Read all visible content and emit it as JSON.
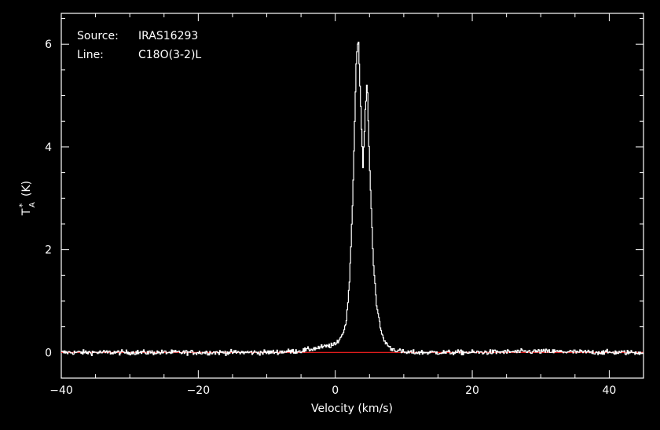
{
  "chart_data": {
    "type": "line",
    "info": {
      "source_label": "Source:",
      "source_value": "IRAS16293",
      "line_label": "Line:",
      "line_value": "C18O(3-2)L"
    },
    "xlabel": "Velocity (km/s)",
    "ylabel_main": "T",
    "ylabel_sup": "*",
    "ylabel_sub": "A",
    "ylabel_unit": "(K)",
    "xlim": [
      -40,
      45
    ],
    "ylim": [
      -0.5,
      6.6
    ],
    "x_ticks": [
      -40,
      -20,
      0,
      20,
      40
    ],
    "x_tick_labels": [
      "−40",
      "−20",
      "0",
      "20",
      "40"
    ],
    "y_ticks": [
      0,
      2,
      4,
      6
    ],
    "y_tick_labels": [
      "0",
      "2",
      "4",
      "6"
    ],
    "baseline": 0,
    "baseline_color": "#ff2020",
    "spectrum_color": "#ffffff",
    "background": "#000000",
    "series": [
      {
        "x": [
          -40,
          -30,
          -20,
          -10,
          -5,
          0,
          1,
          1.5,
          2,
          2.5,
          3,
          3.3,
          3.6,
          4,
          4.3,
          4.6,
          5,
          5.5,
          6,
          6.5,
          7,
          8,
          10,
          20,
          30,
          40,
          45
        ],
        "y": [
          0,
          0,
          0,
          0,
          0.03,
          0.15,
          0.35,
          0.55,
          1.3,
          3.0,
          5.6,
          6.2,
          5.0,
          3.6,
          4.6,
          5.3,
          3.5,
          1.8,
          0.9,
          0.5,
          0.25,
          0.08,
          0,
          0,
          0.02,
          0,
          0
        ]
      }
    ]
  }
}
